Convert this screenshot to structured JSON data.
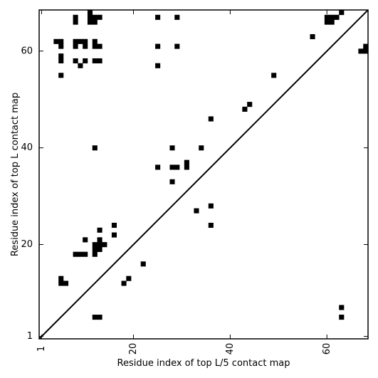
{
  "chart_data": {
    "type": "heatmap",
    "title": "",
    "xlabel": "Residue index of top L/5 contact map",
    "ylabel": "Residue index of top L contact map",
    "xlim": [
      0.5,
      68.5
    ],
    "ylim": [
      0.5,
      68.5
    ],
    "x_ticks": [
      1,
      20,
      40,
      60
    ],
    "y_ticks": [
      1,
      20,
      40,
      60
    ],
    "diagonal_line": true,
    "grid": false,
    "cell_color": "#000000",
    "background_color": "#ffffff",
    "upper_contacts": [
      [
        8,
        67
      ],
      [
        8,
        66
      ],
      [
        11,
        68
      ],
      [
        11,
        67
      ],
      [
        11,
        66
      ],
      [
        12,
        67
      ],
      [
        12,
        66
      ],
      [
        13,
        67
      ],
      [
        25,
        67
      ],
      [
        29,
        67
      ],
      [
        4,
        62
      ],
      [
        5,
        62
      ],
      [
        5,
        61
      ],
      [
        5,
        59
      ],
      [
        5,
        58
      ],
      [
        5,
        55
      ],
      [
        8,
        62
      ],
      [
        8,
        61
      ],
      [
        9,
        62
      ],
      [
        10,
        62
      ],
      [
        10,
        61
      ],
      [
        12,
        62
      ],
      [
        12,
        61
      ],
      [
        13,
        61
      ],
      [
        8,
        58
      ],
      [
        9,
        57
      ],
      [
        10,
        58
      ],
      [
        12,
        58
      ],
      [
        13,
        58
      ],
      [
        25,
        61
      ],
      [
        29,
        61
      ],
      [
        25,
        57
      ],
      [
        60,
        67
      ],
      [
        60,
        66
      ],
      [
        61,
        67
      ],
      [
        61,
        66
      ],
      [
        62,
        67
      ],
      [
        63,
        68
      ],
      [
        57,
        63
      ],
      [
        67,
        60
      ],
      [
        68,
        60
      ],
      [
        68,
        61
      ],
      [
        49,
        55
      ],
      [
        43,
        48
      ],
      [
        44,
        49
      ],
      [
        36,
        46
      ],
      [
        12,
        40
      ],
      [
        28,
        40
      ],
      [
        34,
        40
      ],
      [
        25,
        36
      ],
      [
        28,
        36
      ],
      [
        29,
        36
      ],
      [
        31,
        36
      ],
      [
        31,
        37
      ],
      [
        28,
        33
      ],
      [
        33,
        27
      ],
      [
        36,
        28
      ],
      [
        36,
        24
      ],
      [
        16,
        24
      ],
      [
        16,
        22
      ],
      [
        13,
        23
      ],
      [
        13,
        21
      ],
      [
        10,
        21
      ],
      [
        12,
        20
      ],
      [
        13,
        20
      ],
      [
        14,
        20
      ],
      [
        12,
        19
      ],
      [
        13,
        19
      ],
      [
        12,
        18
      ],
      [
        8,
        18
      ],
      [
        9,
        18
      ],
      [
        10,
        18
      ],
      [
        22,
        16
      ],
      [
        19,
        13
      ],
      [
        18,
        12
      ],
      [
        5,
        13
      ],
      [
        5,
        12
      ],
      [
        6,
        12
      ],
      [
        63,
        7
      ],
      [
        12,
        5
      ],
      [
        13,
        5
      ],
      [
        63,
        5
      ]
    ]
  }
}
